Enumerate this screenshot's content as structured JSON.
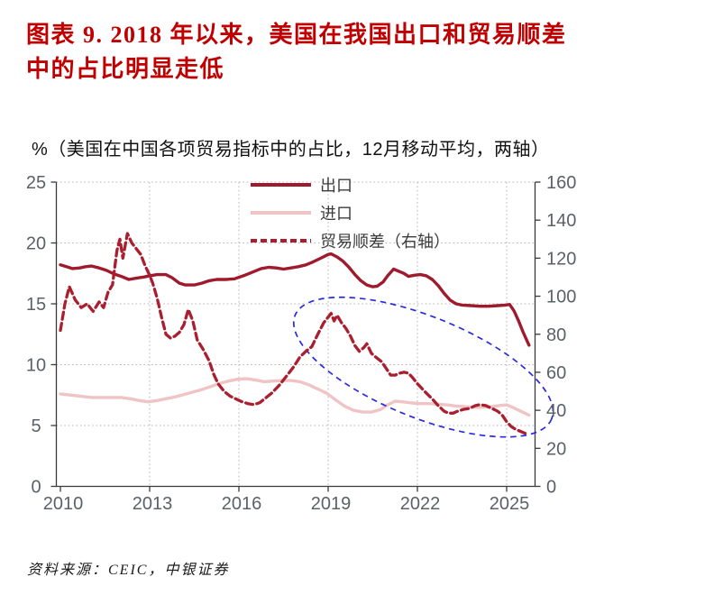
{
  "title": "图表 9.  2018 年以来，美国在我国出口和贸易顺差\n中的占比明显走低",
  "subtitle": "%（美国在中国各项贸易指标中的占比，12月移动平均，两轴）",
  "source": "资料来源：CEIC，中银证券",
  "colors": {
    "title_red": "#c00000",
    "export_line": "#9f1a2c",
    "import_line": "#f0c4c4",
    "surplus_line": "#aa1f30",
    "ellipse_blue": "#2a2ae0",
    "grid_gray": "#b5b5b5",
    "axis_line": "#3a3a3a",
    "tick_label_gray": "#5b6169"
  },
  "chart_data": {
    "type": "line",
    "title": "%（美国在中国各项贸易指标中的占比，12月移动平均，两轴）",
    "grid": true,
    "legend_position": "top-center",
    "x_axis": {
      "range": [
        2010,
        2025.95
      ],
      "ticks": [
        2010,
        2013,
        2016,
        2019,
        2022,
        2025
      ]
    },
    "left_axis": {
      "range": [
        0,
        25
      ],
      "ticks": [
        0,
        5,
        10,
        15,
        20,
        25
      ]
    },
    "right_axis": {
      "range": [
        0,
        160
      ],
      "ticks": [
        0,
        20,
        40,
        60,
        80,
        100,
        120,
        140,
        160
      ]
    },
    "series": [
      {
        "id": "export",
        "name": "出口",
        "axis": "left",
        "style": "solid",
        "color": "#9f1a2c",
        "width": 3.4,
        "points": [
          [
            2010.0,
            18.2
          ],
          [
            2010.2,
            18.05
          ],
          [
            2010.4,
            17.9
          ],
          [
            2010.65,
            17.95
          ],
          [
            2010.85,
            18.05
          ],
          [
            2011.05,
            18.1
          ],
          [
            2011.3,
            17.95
          ],
          [
            2011.55,
            17.75
          ],
          [
            2011.8,
            17.45
          ],
          [
            2012.05,
            17.25
          ],
          [
            2012.3,
            17.0
          ],
          [
            2012.55,
            17.1
          ],
          [
            2012.8,
            17.2
          ],
          [
            2013.0,
            17.3
          ],
          [
            2013.25,
            17.4
          ],
          [
            2013.55,
            17.4
          ],
          [
            2013.75,
            17.15
          ],
          [
            2014.0,
            16.7
          ],
          [
            2014.2,
            16.55
          ],
          [
            2014.5,
            16.55
          ],
          [
            2014.75,
            16.7
          ],
          [
            2015.0,
            16.9
          ],
          [
            2015.25,
            17.0
          ],
          [
            2015.55,
            17.0
          ],
          [
            2015.85,
            17.05
          ],
          [
            2016.15,
            17.3
          ],
          [
            2016.45,
            17.6
          ],
          [
            2016.75,
            17.9
          ],
          [
            2017.0,
            18.0
          ],
          [
            2017.25,
            17.95
          ],
          [
            2017.5,
            17.85
          ],
          [
            2017.75,
            17.95
          ],
          [
            2018.0,
            18.05
          ],
          [
            2018.25,
            18.2
          ],
          [
            2018.5,
            18.45
          ],
          [
            2018.75,
            18.75
          ],
          [
            2019.0,
            19.05
          ],
          [
            2019.1,
            19.1
          ],
          [
            2019.3,
            18.85
          ],
          [
            2019.5,
            18.5
          ],
          [
            2019.7,
            18.0
          ],
          [
            2019.9,
            17.4
          ],
          [
            2020.1,
            16.9
          ],
          [
            2020.3,
            16.55
          ],
          [
            2020.5,
            16.4
          ],
          [
            2020.65,
            16.45
          ],
          [
            2020.85,
            16.8
          ],
          [
            2021.0,
            17.3
          ],
          [
            2021.2,
            17.85
          ],
          [
            2021.35,
            17.7
          ],
          [
            2021.55,
            17.5
          ],
          [
            2021.7,
            17.25
          ],
          [
            2021.9,
            17.35
          ],
          [
            2022.1,
            17.4
          ],
          [
            2022.3,
            17.3
          ],
          [
            2022.5,
            17.0
          ],
          [
            2022.7,
            16.5
          ],
          [
            2022.9,
            15.85
          ],
          [
            2023.1,
            15.3
          ],
          [
            2023.3,
            15.0
          ],
          [
            2023.5,
            14.9
          ],
          [
            2023.8,
            14.85
          ],
          [
            2024.1,
            14.8
          ],
          [
            2024.4,
            14.8
          ],
          [
            2024.7,
            14.85
          ],
          [
            2024.95,
            14.9
          ],
          [
            2025.1,
            14.95
          ],
          [
            2025.25,
            14.4
          ],
          [
            2025.4,
            13.6
          ],
          [
            2025.55,
            12.7
          ],
          [
            2025.75,
            11.6
          ]
        ]
      },
      {
        "id": "import",
        "name": "进口",
        "axis": "left",
        "style": "solid",
        "color": "#f0c4c4",
        "width": 3.4,
        "points": [
          [
            2010.0,
            7.6
          ],
          [
            2010.35,
            7.5
          ],
          [
            2010.7,
            7.4
          ],
          [
            2011.05,
            7.3
          ],
          [
            2011.4,
            7.3
          ],
          [
            2011.75,
            7.3
          ],
          [
            2012.05,
            7.3
          ],
          [
            2012.35,
            7.2
          ],
          [
            2012.65,
            7.05
          ],
          [
            2012.95,
            6.95
          ],
          [
            2013.25,
            7.05
          ],
          [
            2013.55,
            7.2
          ],
          [
            2013.85,
            7.35
          ],
          [
            2014.15,
            7.55
          ],
          [
            2014.45,
            7.75
          ],
          [
            2014.75,
            7.95
          ],
          [
            2015.05,
            8.2
          ],
          [
            2015.35,
            8.45
          ],
          [
            2015.65,
            8.65
          ],
          [
            2015.95,
            8.8
          ],
          [
            2016.25,
            8.85
          ],
          [
            2016.55,
            8.75
          ],
          [
            2016.85,
            8.6
          ],
          [
            2017.15,
            8.65
          ],
          [
            2017.45,
            8.7
          ],
          [
            2017.75,
            8.7
          ],
          [
            2018.05,
            8.6
          ],
          [
            2018.35,
            8.35
          ],
          [
            2018.65,
            8.0
          ],
          [
            2018.95,
            7.65
          ],
          [
            2019.25,
            7.1
          ],
          [
            2019.55,
            6.6
          ],
          [
            2019.85,
            6.25
          ],
          [
            2020.15,
            6.1
          ],
          [
            2020.45,
            6.1
          ],
          [
            2020.75,
            6.3
          ],
          [
            2021.0,
            6.7
          ],
          [
            2021.25,
            7.0
          ],
          [
            2021.5,
            6.95
          ],
          [
            2021.8,
            6.85
          ],
          [
            2022.1,
            6.8
          ],
          [
            2022.4,
            6.8
          ],
          [
            2022.7,
            6.75
          ],
          [
            2023.0,
            6.7
          ],
          [
            2023.3,
            6.6
          ],
          [
            2023.6,
            6.55
          ],
          [
            2023.9,
            6.5
          ],
          [
            2024.2,
            6.5
          ],
          [
            2024.5,
            6.55
          ],
          [
            2024.8,
            6.65
          ],
          [
            2025.0,
            6.7
          ],
          [
            2025.2,
            6.5
          ],
          [
            2025.45,
            6.2
          ],
          [
            2025.75,
            5.85
          ]
        ]
      },
      {
        "id": "trade-surplus",
        "name": "贸易顺差（右轴）",
        "axis": "right",
        "style": "dashed",
        "color": "#aa1f30",
        "width": 3.3,
        "points": [
          [
            2010.0,
            82
          ],
          [
            2010.15,
            96
          ],
          [
            2010.3,
            105
          ],
          [
            2010.5,
            98
          ],
          [
            2010.7,
            94
          ],
          [
            2010.9,
            96
          ],
          [
            2011.1,
            92
          ],
          [
            2011.3,
            97
          ],
          [
            2011.45,
            94
          ],
          [
            2011.6,
            102
          ],
          [
            2011.75,
            106
          ],
          [
            2011.9,
            124
          ],
          [
            2012.0,
            130
          ],
          [
            2012.1,
            120
          ],
          [
            2012.25,
            133
          ],
          [
            2012.4,
            128
          ],
          [
            2012.55,
            125
          ],
          [
            2012.7,
            122
          ],
          [
            2012.85,
            116
          ],
          [
            2013.0,
            111
          ],
          [
            2013.1,
            107
          ],
          [
            2013.25,
            99
          ],
          [
            2013.4,
            89
          ],
          [
            2013.55,
            80
          ],
          [
            2013.7,
            78
          ],
          [
            2013.85,
            79
          ],
          [
            2014.0,
            81
          ],
          [
            2014.15,
            85
          ],
          [
            2014.3,
            93
          ],
          [
            2014.45,
            87
          ],
          [
            2014.6,
            77
          ],
          [
            2014.8,
            72
          ],
          [
            2015.0,
            66
          ],
          [
            2015.15,
            59
          ],
          [
            2015.3,
            54
          ],
          [
            2015.5,
            50
          ],
          [
            2015.7,
            47.5
          ],
          [
            2015.9,
            46
          ],
          [
            2016.1,
            44.5
          ],
          [
            2016.3,
            43.5
          ],
          [
            2016.5,
            43
          ],
          [
            2016.7,
            44
          ],
          [
            2016.9,
            46.5
          ],
          [
            2017.1,
            49
          ],
          [
            2017.35,
            53
          ],
          [
            2017.6,
            58
          ],
          [
            2017.85,
            63
          ],
          [
            2018.05,
            68
          ],
          [
            2018.25,
            71
          ],
          [
            2018.45,
            73.5
          ],
          [
            2018.65,
            80
          ],
          [
            2018.85,
            86
          ],
          [
            2019.0,
            89
          ],
          [
            2019.1,
            91
          ],
          [
            2019.2,
            87
          ],
          [
            2019.3,
            90
          ],
          [
            2019.45,
            86
          ],
          [
            2019.6,
            83
          ],
          [
            2019.75,
            79
          ],
          [
            2019.9,
            74
          ],
          [
            2020.05,
            71
          ],
          [
            2020.2,
            73
          ],
          [
            2020.3,
            75
          ],
          [
            2020.45,
            70
          ],
          [
            2020.6,
            68
          ],
          [
            2020.8,
            65.5
          ],
          [
            2020.95,
            62
          ],
          [
            2021.1,
            58.5
          ],
          [
            2021.25,
            58.5
          ],
          [
            2021.4,
            59.5
          ],
          [
            2021.55,
            60
          ],
          [
            2021.7,
            59.5
          ],
          [
            2021.85,
            57
          ],
          [
            2022.0,
            54
          ],
          [
            2022.15,
            51.5
          ],
          [
            2022.3,
            49
          ],
          [
            2022.5,
            46
          ],
          [
            2022.7,
            42.5
          ],
          [
            2022.9,
            39.5
          ],
          [
            2023.05,
            38.5
          ],
          [
            2023.2,
            38.5
          ],
          [
            2023.35,
            39.5
          ],
          [
            2023.55,
            40.5
          ],
          [
            2023.75,
            41
          ],
          [
            2023.95,
            42.5
          ],
          [
            2024.1,
            43
          ],
          [
            2024.3,
            42.5
          ],
          [
            2024.5,
            41
          ],
          [
            2024.7,
            39.5
          ],
          [
            2024.85,
            37.5
          ],
          [
            2025.0,
            34
          ],
          [
            2025.15,
            31.5
          ],
          [
            2025.3,
            30
          ],
          [
            2025.45,
            29
          ],
          [
            2025.6,
            28
          ],
          [
            2025.75,
            27.5
          ]
        ]
      }
    ],
    "annotation_ellipse": {
      "description": "blue dashed highlight of post-2018 decline",
      "value_axis": "left",
      "center_year": 2022.2,
      "center_value": 9.8,
      "rx_years": 4.65,
      "ry_values": 4.15,
      "rotation_deg": 22,
      "color": "#2a2ae0"
    }
  }
}
